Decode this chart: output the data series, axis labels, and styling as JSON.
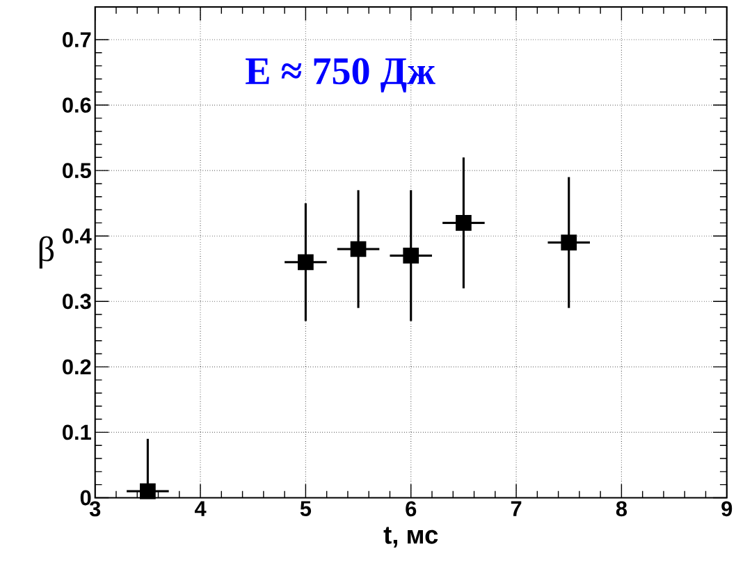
{
  "chart_data": {
    "type": "scatter",
    "xlabel": "t, мс",
    "ylabel": "β",
    "annotations": [
      "E ≈ 750 Дж"
    ],
    "x": [
      3.5,
      5,
      5.5,
      6,
      6.5,
      7.5
    ],
    "series": [
      {
        "color": "#000000",
        "values": [
          0.01,
          0.36,
          0.38,
          0.37,
          0.42,
          0.39
        ],
        "errors": [
          [
            0,
            0.09
          ],
          0.09,
          0.09,
          0.1,
          0.1,
          0.1
        ],
        "xerrors": [
          0.2,
          0.2,
          0.2,
          0.2,
          0.2,
          0.2
        ]
      }
    ],
    "xlim": [
      3,
      9
    ],
    "ylim": [
      0,
      0.75
    ],
    "xticks": [
      3,
      4,
      5,
      6,
      7,
      8,
      9
    ],
    "yticks": [
      0,
      0.1,
      0.2,
      0.3,
      0.4,
      0.5,
      0.6,
      0.7
    ],
    "grid": true,
    "marker": "square",
    "line_style": "none"
  }
}
